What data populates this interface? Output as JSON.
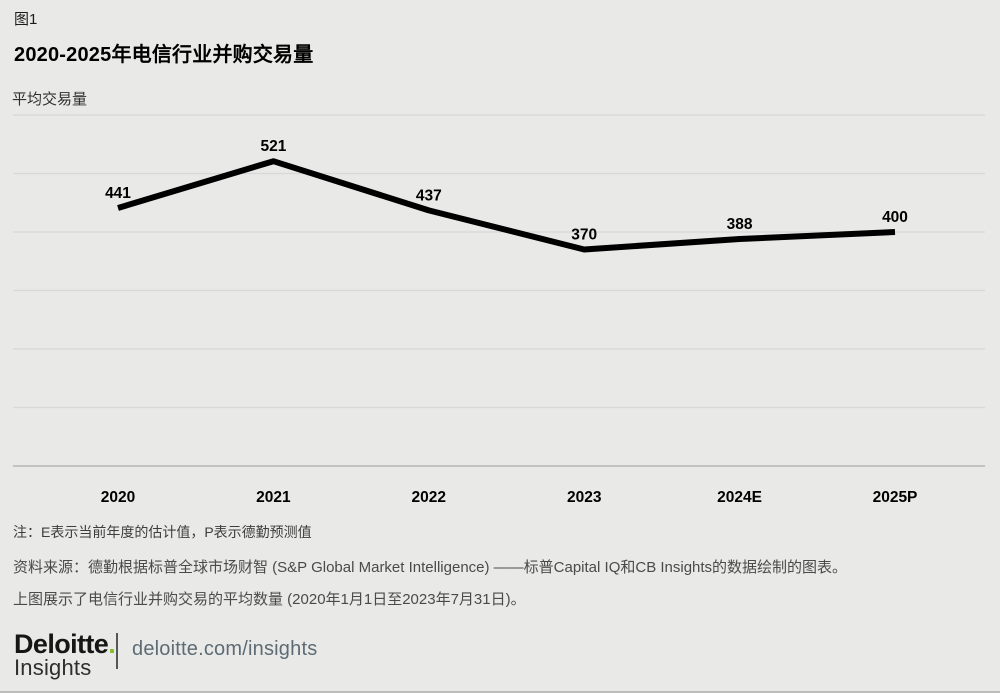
{
  "figure_label": "图1",
  "title": "2020-2025年电信行业并购交易量",
  "y_axis_label": "平均交易量",
  "note": "注：E表示当前年度的估计值，P表示德勤预测值",
  "source_line1": "资料来源：德勤根据标普全球市场财智 (S&P Global Market Intelligence) ——标普Capital IQ和CB Insights的数据绘制的图表。",
  "source_line2": "上图展示了电信行业并购交易的平均数量 (2020年1月1日至2023年7月31日)。",
  "footer": {
    "brand": "Deloitte",
    "brand_dot": ".",
    "brand_sub": "Insights",
    "url": "deloitte.com/insights"
  },
  "colors": {
    "background": "#e9e9e8",
    "line": "#000000",
    "gridline": "#d8d8d7",
    "axis_line": "#c3c3c2",
    "brand_green": "#86bc25",
    "url_gray": "#5d6b74"
  },
  "chart_data": {
    "type": "line",
    "categories": [
      "2020",
      "2021",
      "2022",
      "2023",
      "2024E",
      "2025P"
    ],
    "values": [
      441,
      521,
      437,
      370,
      388,
      400
    ],
    "title": "2020-2025年电信行业并购交易量",
    "xlabel": "",
    "ylabel": "平均交易量",
    "ylim": [
      0,
      600
    ],
    "gridline_step": 100,
    "grid": true,
    "legend": false,
    "line_color": "#000000",
    "line_width": 6
  }
}
